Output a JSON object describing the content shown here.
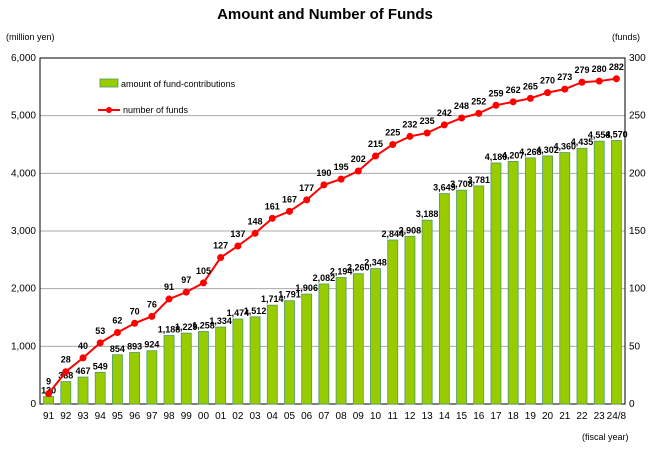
{
  "chart_data": {
    "type": "bar+line",
    "title": "Amount and Number of Funds",
    "y_left_label": "(million yen)",
    "y_right_label": "(funds)",
    "xlabel": "(fiscal year)",
    "categories": [
      "91",
      "92",
      "93",
      "94",
      "95",
      "96",
      "97",
      "98",
      "99",
      "00",
      "01",
      "02",
      "03",
      "04",
      "05",
      "06",
      "07",
      "08",
      "09",
      "10",
      "11",
      "12",
      "13",
      "14",
      "15",
      "16",
      "17",
      "18",
      "19",
      "20",
      "21",
      "22",
      "23",
      "24/8"
    ],
    "series": [
      {
        "name": "amount of fund-contributions",
        "type": "bar",
        "axis": "left",
        "color": "#99cc00",
        "values": [
          130,
          388,
          467,
          549,
          854,
          893,
          924,
          1188,
          1229,
          1258,
          1334,
          1474,
          1512,
          1714,
          1791,
          1906,
          2082,
          2194,
          2260,
          2348,
          2844,
          2908,
          3188,
          3649,
          3708,
          3781,
          4180,
          4207,
          4268,
          4302,
          4360,
          4435,
          4558,
          4570
        ]
      },
      {
        "name": "number of funds",
        "type": "line",
        "axis": "right",
        "color": "#ff0000",
        "values": [
          9,
          28,
          40,
          53,
          62,
          70,
          76,
          91,
          97,
          105,
          127,
          137,
          148,
          161,
          167,
          177,
          190,
          195,
          202,
          215,
          225,
          232,
          235,
          242,
          248,
          252,
          259,
          262,
          265,
          270,
          273,
          279,
          280,
          282
        ]
      }
    ],
    "ylim_left": [
      0,
      6000
    ],
    "ylim_right": [
      0,
      300
    ],
    "yticks_left": [
      "0",
      "1,000",
      "2,000",
      "3,000",
      "4,000",
      "5,000",
      "6,000"
    ],
    "yticks_right": [
      "0",
      "50",
      "100",
      "150",
      "200",
      "250",
      "300"
    ],
    "grid": true,
    "legend": "top-left inside"
  }
}
